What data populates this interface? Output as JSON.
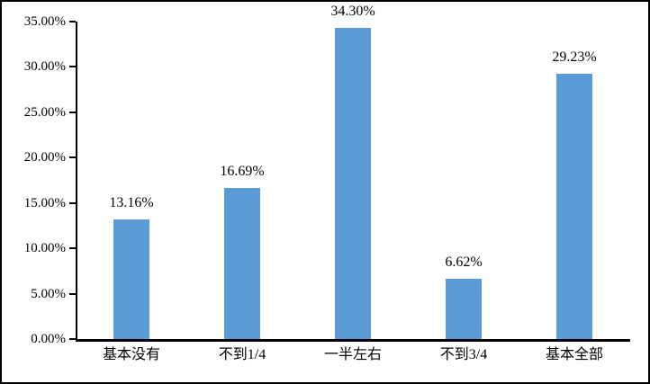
{
  "frame": {
    "background_color": "#ffffff",
    "border_color": "#000000"
  },
  "chart_data": {
    "type": "bar",
    "title": "",
    "xlabel": "",
    "ylabel": "",
    "categories": [
      "基本没有",
      "不到1/4",
      "一半左右",
      "不到3/4",
      "基本全部"
    ],
    "values": [
      13.16,
      16.69,
      34.3,
      6.62,
      29.23
    ],
    "data_labels": [
      "13.16%",
      "16.69%",
      "34.30%",
      "6.62%",
      "29.23%"
    ],
    "y_tick_values": [
      0,
      5,
      10,
      15,
      20,
      25,
      30,
      35
    ],
    "y_tick_labels": [
      "0.00%",
      "5.00%",
      "10.00%",
      "15.00%",
      "20.00%",
      "25.00%",
      "30.00%",
      "35.00%"
    ],
    "ylim": [
      0,
      35
    ],
    "grid": false,
    "legend_position": "none",
    "bar_color": "#5B9BD5",
    "axis_color": "#000000",
    "text_color": "#000000"
  }
}
